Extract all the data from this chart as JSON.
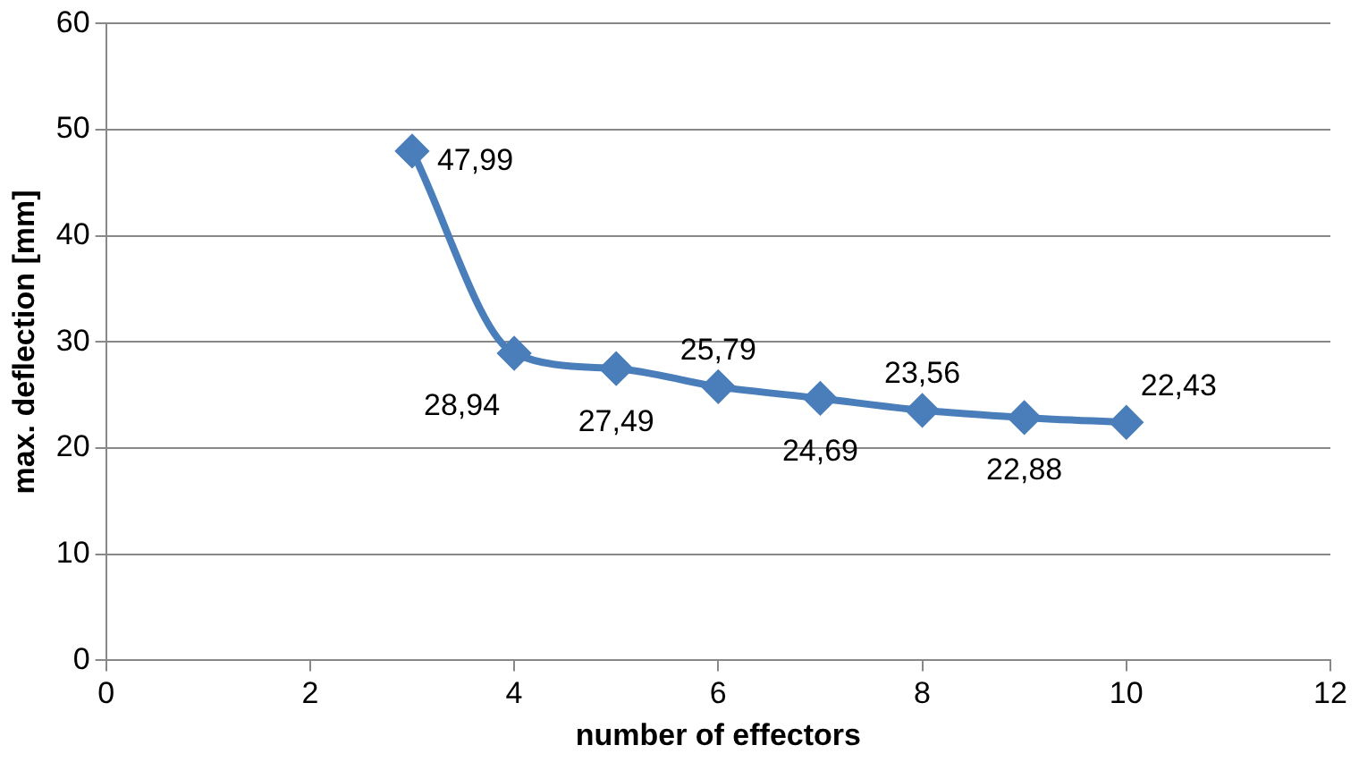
{
  "chart_data": {
    "type": "line",
    "xlabel": "number of effectors",
    "ylabel": "max. deflection [mm]",
    "x": [
      3,
      4,
      5,
      6,
      7,
      8,
      9,
      10
    ],
    "series": [
      {
        "color": "#4a7ebb",
        "values": [
          47.99,
          28.94,
          27.49,
          25.79,
          24.69,
          23.56,
          22.88,
          22.43
        ],
        "value_labels": [
          "47,99",
          "28,94",
          "27,49",
          "25,79",
          "24,69",
          "23,56",
          "22,88",
          "22,43"
        ]
      }
    ],
    "xlim": [
      0,
      12
    ],
    "xticks": [
      0,
      2,
      4,
      6,
      8,
      10,
      12
    ],
    "ylim": [
      0,
      60
    ],
    "yticks": [
      0,
      10,
      20,
      30,
      40,
      50,
      60
    ],
    "grid": "y",
    "legend": false,
    "marker": "diamond",
    "line_style": "solid"
  }
}
